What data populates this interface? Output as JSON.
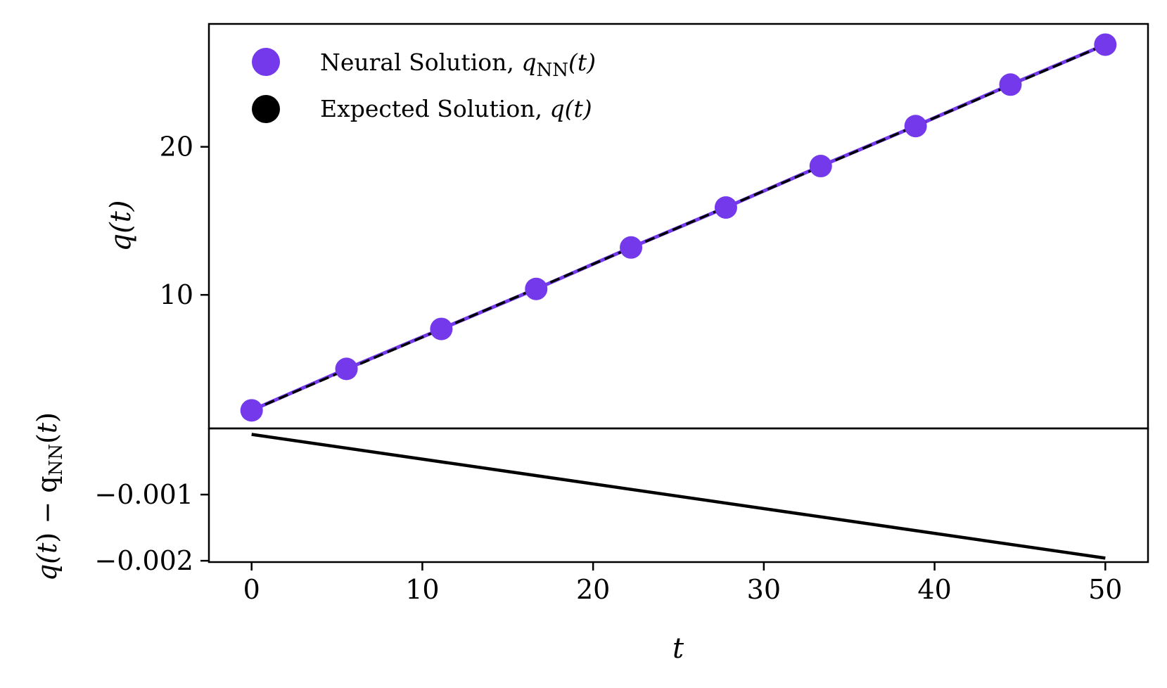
{
  "chart_data": [
    {
      "type": "line",
      "panel": "top",
      "ylabel_parts": [
        "q(",
        "t",
        ")"
      ],
      "xlim": [
        -2.5,
        52.5
      ],
      "ylim": [
        0.98,
        28.3
      ],
      "yticks": [
        10,
        20
      ],
      "ytick_labels": [
        "10",
        "20"
      ],
      "legend": {
        "placement": "top-left",
        "entries": [
          {
            "label": "Neural Solution, ",
            "math": "q",
            "sub": "NN",
            "arg": "(t)",
            "color": "#7339eb"
          },
          {
            "label": "Expected Solution, ",
            "math": "q",
            "sub": "",
            "arg": "(t)",
            "color": "#000000"
          }
        ]
      },
      "series": [
        {
          "name": "Neural Solution",
          "color": "#7339eb",
          "style": "line+markers",
          "x": [
            0,
            5.556,
            11.111,
            16.667,
            22.222,
            27.778,
            33.333,
            38.889,
            44.444,
            50
          ],
          "y": [
            2.2,
            5.0,
            7.7,
            10.4,
            13.2,
            15.9,
            18.7,
            21.4,
            24.2,
            26.9
          ]
        },
        {
          "name": "Expected Solution",
          "color": "#000000",
          "style": "dashed",
          "x": [
            0,
            50
          ],
          "y": [
            2.2,
            26.9
          ]
        }
      ]
    },
    {
      "type": "line",
      "panel": "bottom",
      "xlabel": "t",
      "ylabel_parts": [
        "q(",
        "t",
        ") − q",
        "NN",
        "(",
        "t",
        ")"
      ],
      "xlim": [
        -2.5,
        52.5
      ],
      "ylim": [
        -0.00202,
        0.0
      ],
      "xticks": [
        0,
        10,
        20,
        30,
        40,
        50
      ],
      "xtick_labels": [
        "0",
        "10",
        "20",
        "30",
        "40",
        "50"
      ],
      "yticks": [
        -0.001,
        -0.002
      ],
      "ytick_labels": [
        "−0.001",
        "−0.002"
      ],
      "series": [
        {
          "name": "Residual",
          "color": "#000000",
          "x": [
            0,
            50
          ],
          "y": [
            -9e-05,
            -0.00196
          ]
        }
      ]
    }
  ]
}
